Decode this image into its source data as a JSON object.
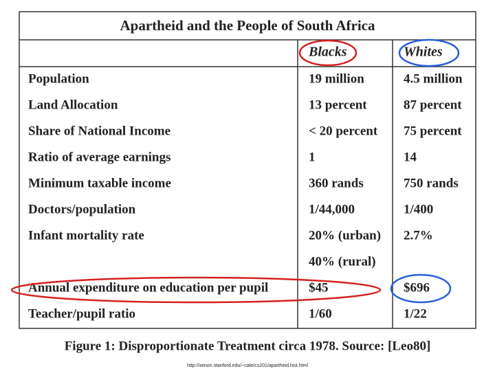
{
  "table": {
    "title": "Apartheid and the People of South Africa",
    "columns": [
      "Blacks",
      "Whites"
    ],
    "rows": [
      {
        "label": "Population",
        "blacks": "19 million",
        "whites": "4.5 million"
      },
      {
        "label": "Land Allocation",
        "blacks": "13 percent",
        "whites": "87 percent"
      },
      {
        "label": "Share of National Income",
        "blacks": "< 20 percent",
        "whites": "75 percent"
      },
      {
        "label": "Ratio of average earnings",
        "blacks": "1",
        "whites": "14"
      },
      {
        "label": "Minimum taxable income",
        "blacks": "360 rands",
        "whites": "750 rands"
      },
      {
        "label": "Doctors/population",
        "blacks": "1/44,000",
        "whites": "1/400"
      },
      {
        "label": "Infant mortality rate",
        "blacks": [
          "20% (urban)",
          "40% (rural)"
        ],
        "whites": "2.7%"
      },
      {
        "label": "Annual expenditure on education per pupil",
        "blacks": "$45",
        "whites": "$696"
      },
      {
        "label": "Teacher/pupil ratio",
        "blacks": "1/60",
        "whites": "1/22"
      }
    ]
  },
  "caption": "Figure 1: Disproportionate Treatment circa 1978. Source: [Leo80]",
  "source_url": "http://xenon.stanford.edu/~cale/cs201/apartheid.hist.html"
}
